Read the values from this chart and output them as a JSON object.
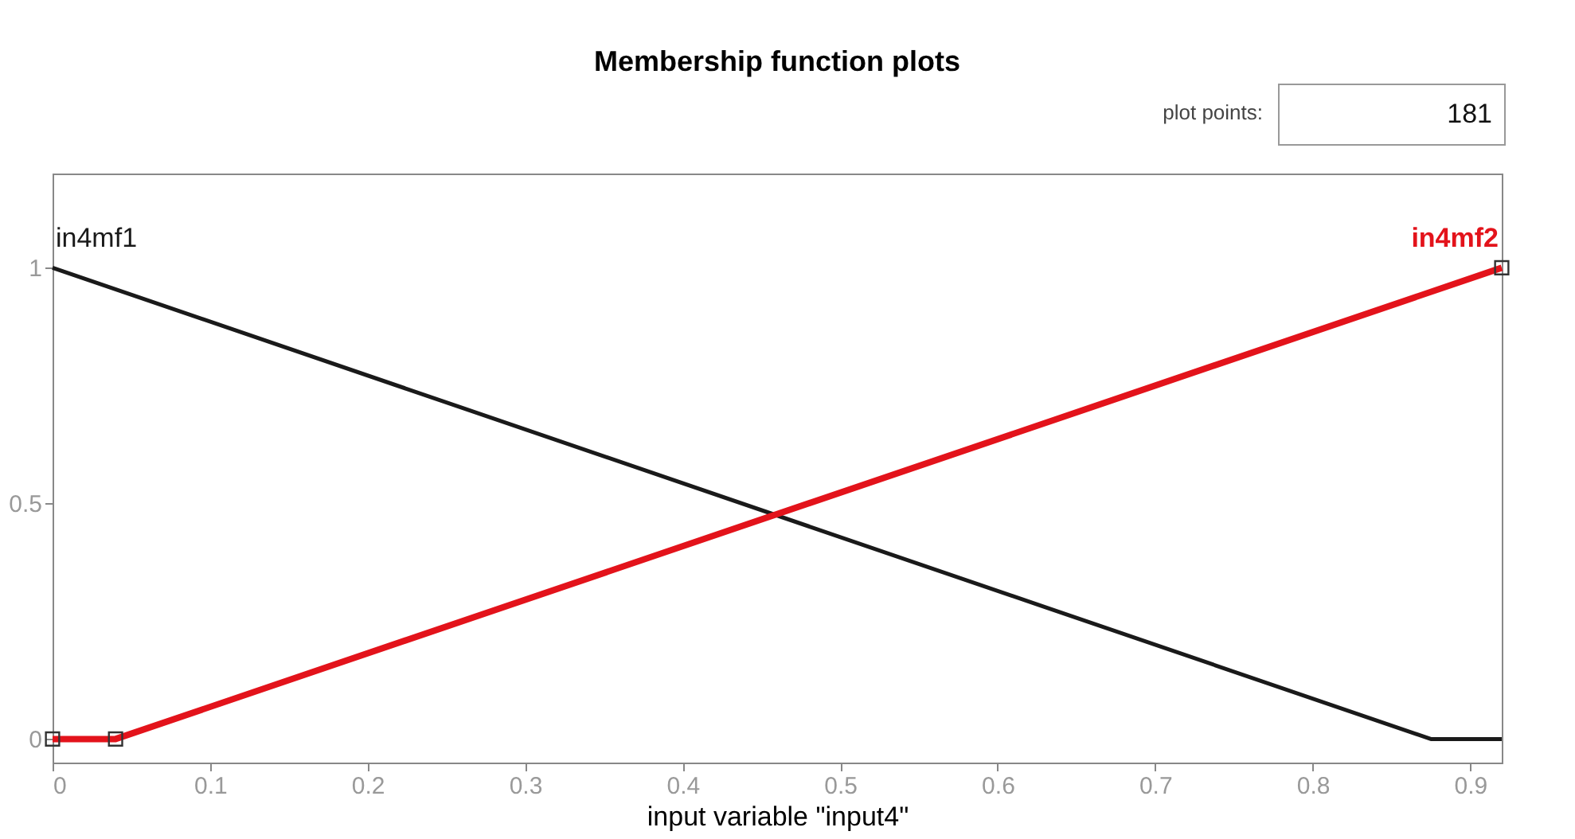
{
  "chart_data": {
    "type": "line",
    "title": "Membership function plots",
    "xlabel": "input variable \"input4\"",
    "xlim": [
      0,
      0.92
    ],
    "xticks": [
      0,
      0.1,
      0.2,
      0.3,
      0.4,
      0.5,
      0.6,
      0.7,
      0.8,
      0.9
    ],
    "ylim": [
      -0.05,
      1.2
    ],
    "yticks": [
      0,
      0.5,
      1
    ],
    "grid": false,
    "legend": false,
    "series": [
      {
        "name": "in4mf1",
        "color": "#1a1a1a",
        "x": [
          0,
          0.875,
          0.92
        ],
        "values": [
          1,
          0,
          0
        ],
        "marker": "none"
      },
      {
        "name": "in4mf2",
        "color": "#e3131b",
        "x": [
          0,
          0.04,
          0.92
        ],
        "values": [
          0,
          0,
          1
        ],
        "marker": "square"
      }
    ],
    "annotations": [
      "plot points:",
      "181"
    ]
  }
}
